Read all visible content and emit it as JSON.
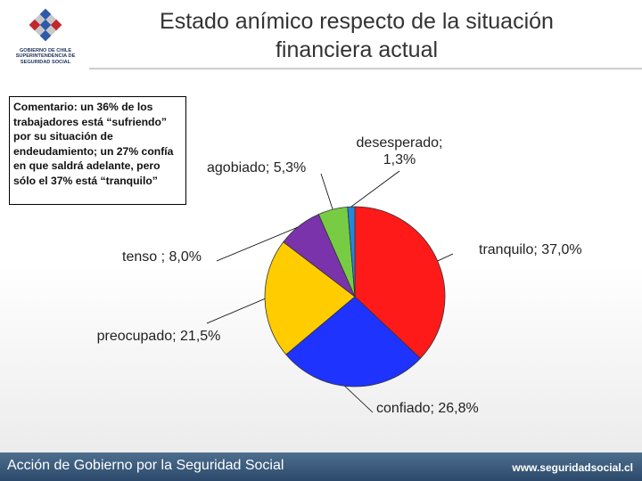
{
  "header": {
    "logo_lines": [
      "GOBIERNO DE CHILE",
      "SUPERINTENDENCIA DE",
      "SEGURIDAD SOCIAL"
    ],
    "title_line1": "Estado anímico respecto de la situación",
    "title_line2": "financiera actual"
  },
  "comment": {
    "text": "Comentario: un 36% de los trabajadores está “sufriendo” por su situación de endeudamiento; un 27% confía en que saldrá adelante, pero sólo el 37% está “tranquilo”"
  },
  "chart_data": {
    "type": "pie",
    "slices": [
      {
        "label": "tranquilo; 37,0%",
        "value": 37.0,
        "color": "#ff1a1a"
      },
      {
        "label": "confiado; 26,8%",
        "value": 26.8,
        "color": "#1f33ff"
      },
      {
        "label": "preocupado; 21,5%",
        "value": 21.5,
        "color": "#ffcc00"
      },
      {
        "label": "tenso ; 8,0%",
        "value": 8.0,
        "color": "#7a33aa"
      },
      {
        "label": "agobiado; 5,3%",
        "value": 5.3,
        "color": "#77cc44"
      },
      {
        "label": "desesperado; 1,3%",
        "value": 1.3,
        "color": "#2288dd"
      }
    ],
    "legend": "none",
    "data_labels": "outside with leader lines"
  },
  "footer": {
    "left": "Acción de Gobierno por la Seguridad Social",
    "right": "www.seguridadsocial.cl"
  }
}
